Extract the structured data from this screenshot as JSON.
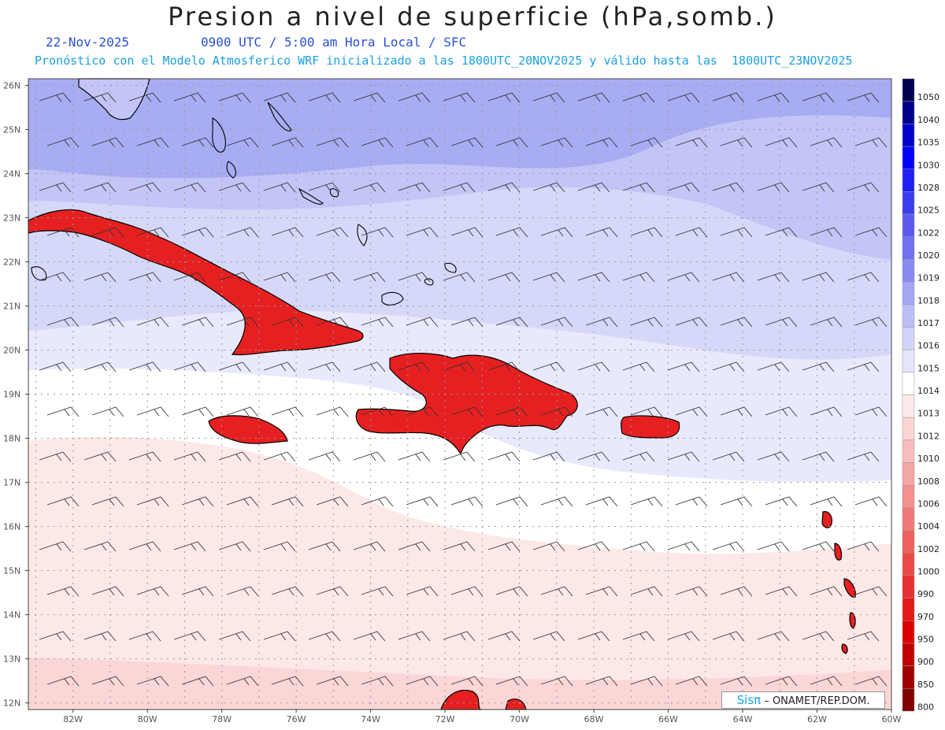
{
  "header": {
    "title": "Presion a nivel de superficie (hPa,somb.)",
    "date": "22-Nov-2025",
    "time_info": "0900 UTC / 5:00 am Hora Local / SFC",
    "model_info": "Pronóstico con el Modelo Atmosferico WRF inicializado a las 1800UTC_20NOV2025 y válido hasta las  1800UTC_23NOV2025"
  },
  "map": {
    "lat_labels": [
      "26N",
      "25N",
      "24N",
      "23N",
      "22N",
      "21N",
      "20N",
      "19N",
      "18N",
      "17N",
      "16N",
      "15N",
      "14N",
      "13N",
      "12N"
    ],
    "lon_labels": [
      "82W",
      "80W",
      "78W",
      "76W",
      "74W",
      "72W",
      "70W",
      "68W",
      "66W",
      "64W",
      "62W",
      "60W"
    ],
    "colors": {
      "high_1018": "#a8acf2",
      "band_1017": "#c2c5f6",
      "band_1016": "#d6d8fa",
      "band_1015": "#e8e9fc",
      "band_1014": "#ffffff",
      "band_1013": "#fde8e8",
      "band_1012": "#fbd6d6",
      "land_low": "#e62020",
      "land_mid": "#f08080",
      "coast": "#000000"
    },
    "islands": [
      "cuba",
      "hispaniola",
      "jamaica",
      "puerto-rico",
      "bahamas",
      "lesser-antilles"
    ]
  },
  "legend": {
    "levels": [
      "1050",
      "1040",
      "1035",
      "1030",
      "1028",
      "1025",
      "1022",
      "1020",
      "1019",
      "1018",
      "1017",
      "1016",
      "1015",
      "1014",
      "1013",
      "1012",
      "1010",
      "1008",
      "1006",
      "1004",
      "1002",
      "1000",
      "990",
      "970",
      "950",
      "900",
      "850",
      "800"
    ],
    "colors": [
      "#000050",
      "#00008c",
      "#0000c8",
      "#0000ff",
      "#1e1ef5",
      "#3c3cf0",
      "#5a5af0",
      "#7070f0",
      "#8a8af2",
      "#a4a6f4",
      "#bcbef7",
      "#d2d3fa",
      "#e4e5fc",
      "#ffffff",
      "#fde9e9",
      "#fbd4d4",
      "#f7bcbc",
      "#f5a6a6",
      "#f39090",
      "#f17878",
      "#ee6060",
      "#ec4848",
      "#e83030",
      "#e41818",
      "#de0000",
      "#c00000",
      "#a00000",
      "#800000"
    ]
  },
  "credit": {
    "brand": "Sisπ",
    "text": " – ONAMET/REP.DOM."
  }
}
